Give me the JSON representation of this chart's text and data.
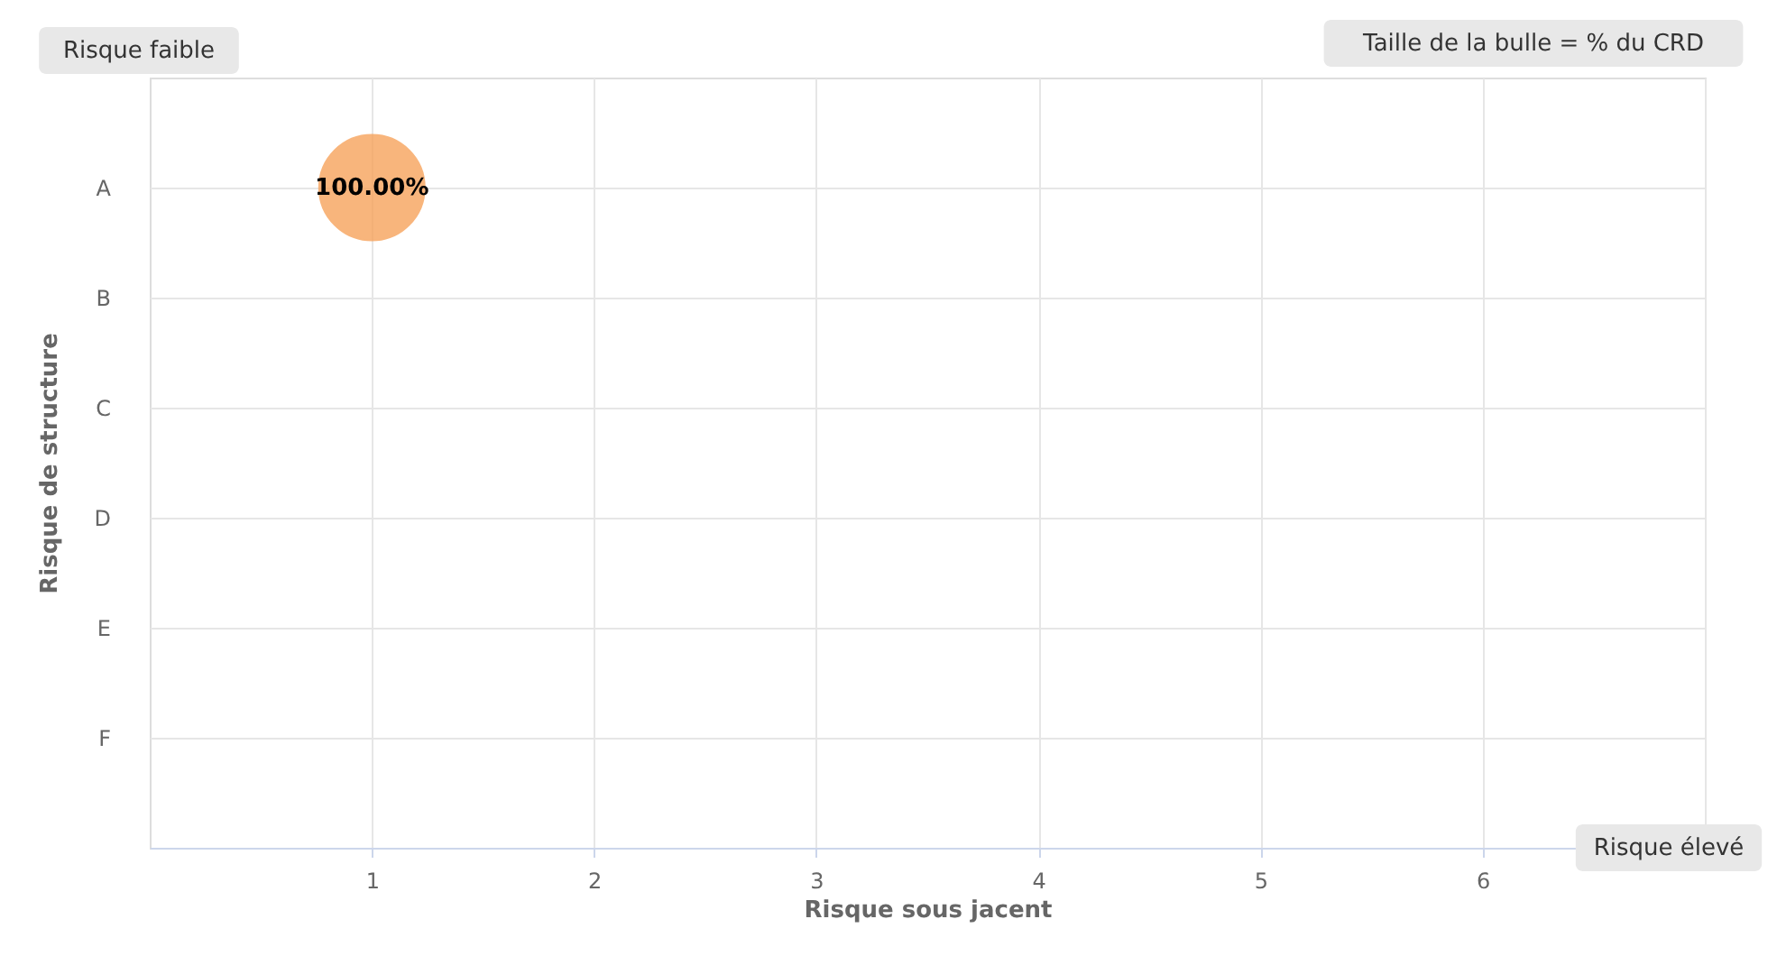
{
  "chart_data": {
    "type": "bubble",
    "orientation": "horizontal",
    "xlabel": "Risque sous jacent",
    "ylabel": "Risque de structure",
    "categories": [
      "A",
      "B",
      "C",
      "D",
      "E",
      "F"
    ],
    "xlim": [
      0,
      7
    ],
    "xticks": [
      1,
      2,
      3,
      4,
      5,
      6,
      {
        "value": 7,
        "label": null
      }
    ],
    "series": [
      {
        "color": "#f7a35c",
        "values": [
          1,
          null,
          null,
          null,
          null,
          null
        ],
        "sizes": [
          1,
          null,
          null,
          null,
          null,
          null
        ],
        "value_labels": [
          "100.00%",
          null,
          null,
          null,
          null,
          null
        ]
      }
    ],
    "annotations": [
      "Risque faible",
      "Taille de la bulle = % du CRD",
      "Risque élevé"
    ],
    "grid": true
  }
}
